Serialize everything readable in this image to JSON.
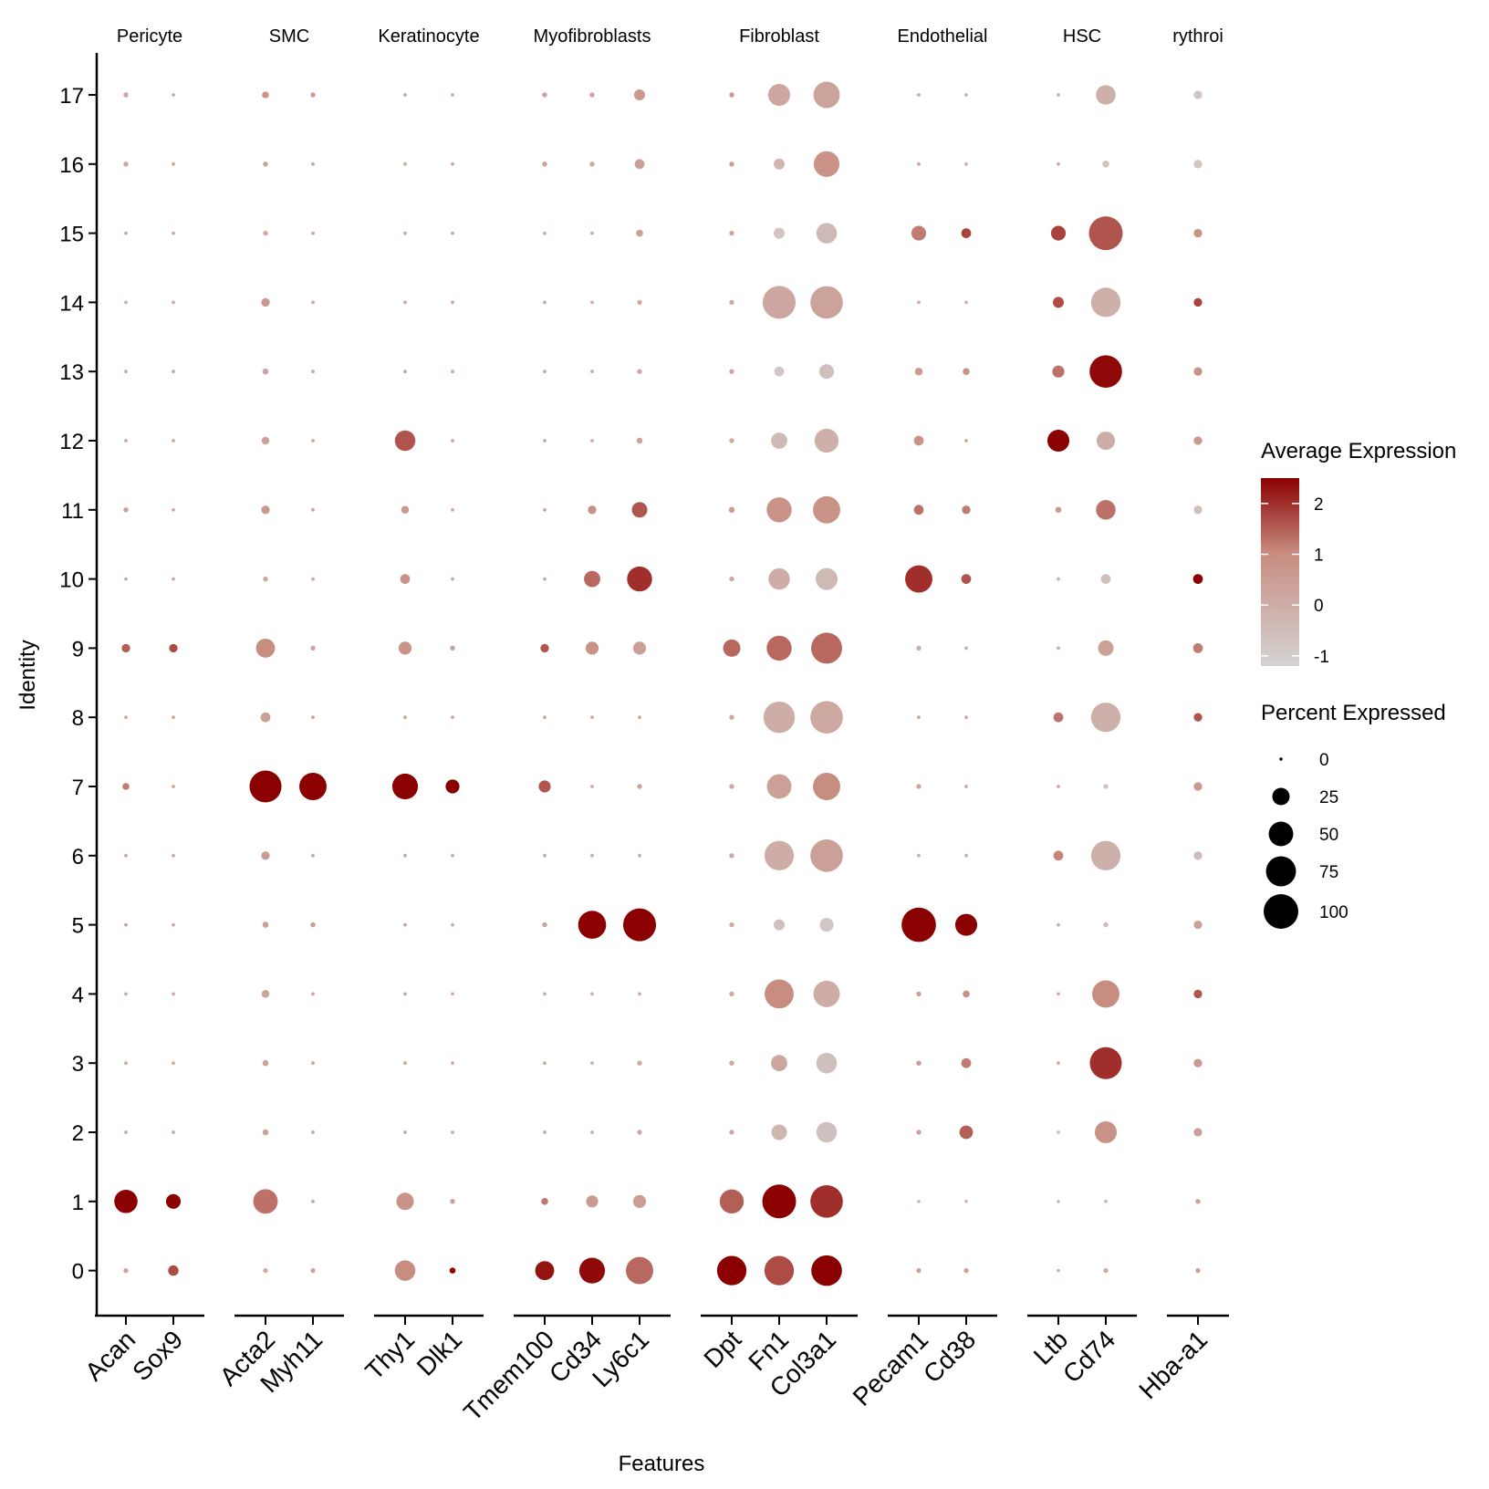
{
  "chart_data": {
    "type": "dotplot",
    "xlabel": "Features",
    "ylabel": "Identity",
    "identities": [
      "0",
      "1",
      "2",
      "3",
      "4",
      "5",
      "6",
      "7",
      "8",
      "9",
      "10",
      "11",
      "12",
      "13",
      "14",
      "15",
      "16",
      "17"
    ],
    "groups": [
      {
        "label": "Pericyte",
        "features": [
          "Acan",
          "Sox9"
        ]
      },
      {
        "label": "SMC",
        "features": [
          "Acta2",
          "Myh11"
        ]
      },
      {
        "label": "Keratinocyte",
        "features": [
          "Thy1",
          "Dlk1"
        ]
      },
      {
        "label": "Myofibroblasts",
        "features": [
          "Tmem100",
          "Cd34",
          "Ly6c1"
        ]
      },
      {
        "label": "Fibroblast",
        "features": [
          "Dpt",
          "Fn1",
          "Col3a1"
        ]
      },
      {
        "label": "Endothelial",
        "features": [
          "Pecam1",
          "Cd38"
        ]
      },
      {
        "label": "HSC",
        "features": [
          "Ltb",
          "Cd74"
        ]
      },
      {
        "label": "Erythroid",
        "features": [
          "Hba-a1"
        ]
      }
    ],
    "group_labels_visible": [
      "Pericyte",
      "SMC",
      "Keratinocyte",
      "Myofibroblasts",
      "Fibroblast",
      "Endothelial",
      "HSC",
      "rythroi"
    ],
    "features": [
      "Acan",
      "Sox9",
      "Acta2",
      "Myh11",
      "Thy1",
      "Dlk1",
      "Tmem100",
      "Cd34",
      "Ly6c1",
      "Dpt",
      "Fn1",
      "Col3a1",
      "Pecam1",
      "Cd38",
      "Ltb",
      "Cd74",
      "Hba-a1"
    ],
    "pct_expressed": [
      [
        2,
        9,
        2,
        2,
        35,
        3,
        30,
        55,
        62,
        72,
        72,
        78,
        2,
        2,
        0,
        2,
        2
      ],
      [
        45,
        18,
        50,
        1,
        25,
        2,
        4,
        12,
        14,
        48,
        95,
        88,
        0,
        0,
        0,
        1,
        2
      ],
      [
        1,
        1,
        3,
        1,
        1,
        1,
        1,
        1,
        2,
        2,
        20,
        35,
        2,
        15,
        0,
        40,
        6
      ],
      [
        1,
        1,
        3,
        1,
        1,
        1,
        1,
        1,
        2,
        2,
        22,
        35,
        2,
        8,
        1,
        85,
        6
      ],
      [
        1,
        1,
        5,
        1,
        1,
        1,
        1,
        1,
        1,
        2,
        70,
        58,
        2,
        4,
        1,
        62,
        6
      ],
      [
        1,
        1,
        3,
        2,
        1,
        1,
        2,
        65,
        90,
        2,
        10,
        16,
        98,
        40,
        1,
        2,
        6
      ],
      [
        1,
        1,
        6,
        1,
        1,
        1,
        1,
        1,
        1,
        2,
        72,
        88,
        1,
        1,
        8,
        72,
        6
      ],
      [
        4,
        1,
        85,
        62,
        55,
        16,
        12,
        1,
        2,
        2,
        50,
        62,
        2,
        1,
        1,
        2,
        6
      ],
      [
        1,
        1,
        8,
        1,
        1,
        1,
        1,
        1,
        1,
        2,
        82,
        88,
        1,
        1,
        8,
        72,
        6
      ],
      [
        6,
        6,
        30,
        2,
        14,
        2,
        6,
        14,
        14,
        25,
        52,
        80,
        2,
        1,
        1,
        20,
        8
      ],
      [
        1,
        1,
        2,
        1,
        8,
        1,
        1,
        22,
        52,
        2,
        38,
        40,
        62,
        8,
        1,
        8,
        8
      ],
      [
        2,
        1,
        6,
        1,
        5,
        1,
        1,
        6,
        20,
        3,
        52,
        62,
        8,
        6,
        3,
        32,
        6
      ],
      [
        1,
        1,
        5,
        1,
        35,
        1,
        1,
        1,
        3,
        2,
        22,
        48,
        8,
        1,
        40,
        28,
        6
      ],
      [
        1,
        1,
        3,
        1,
        1,
        1,
        1,
        1,
        2,
        2,
        8,
        18,
        5,
        4,
        12,
        88,
        6
      ],
      [
        1,
        1,
        6,
        1,
        1,
        1,
        1,
        1,
        2,
        2,
        90,
        88,
        1,
        1,
        10,
        72,
        6
      ],
      [
        1,
        1,
        2,
        1,
        1,
        1,
        1,
        1,
        4,
        2,
        10,
        35,
        18,
        8,
        18,
        95,
        6
      ],
      [
        2,
        1,
        2,
        1,
        1,
        1,
        2,
        2,
        8,
        2,
        10,
        55,
        1,
        1,
        1,
        4,
        6
      ],
      [
        2,
        1,
        4,
        2,
        1,
        1,
        2,
        2,
        10,
        2,
        40,
        58,
        1,
        1,
        1,
        32,
        6
      ]
    ],
    "avg_expression": [
      [
        0.2,
        1.7,
        0.0,
        0.2,
        1.0,
        2.4,
        2.3,
        2.4,
        1.4,
        2.5,
        1.7,
        2.5,
        0.3,
        0.3,
        0.0,
        0.0,
        0.3
      ],
      [
        2.5,
        2.5,
        1.3,
        0.2,
        0.8,
        0.4,
        1.2,
        0.6,
        0.5,
        1.5,
        2.5,
        2.0,
        0.0,
        0.0,
        0.0,
        -0.4,
        0.4
      ],
      [
        0.2,
        0.1,
        0.3,
        0.2,
        0.2,
        0.1,
        0.1,
        0.0,
        0.1,
        0.1,
        -0.3,
        -0.6,
        0.4,
        1.5,
        0.0,
        0.8,
        0.4
      ],
      [
        0.1,
        0.1,
        0.3,
        0.2,
        0.2,
        0.1,
        0.1,
        0.0,
        0.1,
        0.1,
        0.2,
        -0.6,
        0.5,
        1.2,
        0.1,
        2.0,
        0.6
      ],
      [
        0.1,
        0.1,
        0.3,
        0.2,
        0.2,
        0.1,
        0.1,
        0.0,
        0.1,
        0.1,
        1.0,
        0.0,
        0.4,
        0.9,
        0.1,
        1.0,
        1.6
      ],
      [
        0.4,
        0.1,
        0.4,
        0.6,
        0.2,
        0.1,
        0.4,
        2.5,
        2.5,
        0.1,
        -0.6,
        -0.8,
        2.5,
        2.5,
        0.0,
        -0.4,
        0.3
      ],
      [
        0.2,
        0.1,
        0.5,
        0.2,
        0.2,
        0.1,
        0.1,
        0.0,
        0.1,
        0.1,
        0.0,
        0.4,
        0.0,
        0.0,
        1.1,
        -0.1,
        -0.5
      ],
      [
        1.2,
        0.1,
        2.5,
        2.5,
        2.5,
        2.5,
        1.6,
        0.0,
        0.3,
        0.1,
        0.4,
        1.0,
        0.2,
        0.1,
        0.0,
        -0.7,
        0.6
      ],
      [
        0.1,
        0.1,
        0.4,
        0.2,
        0.2,
        0.1,
        0.1,
        0.0,
        0.1,
        0.1,
        0.0,
        0.1,
        0.1,
        0.0,
        1.3,
        -0.1,
        1.6
      ],
      [
        1.5,
        1.7,
        1.0,
        0.2,
        0.8,
        0.4,
        1.6,
        0.8,
        0.4,
        1.4,
        1.4,
        1.4,
        0.0,
        0.0,
        0.0,
        0.4,
        1.2
      ],
      [
        0.1,
        0.1,
        0.1,
        0.2,
        0.8,
        0.1,
        0.1,
        1.4,
        2.0,
        0.1,
        0.0,
        -0.4,
        2.0,
        1.6,
        0.0,
        -0.6,
        2.5
      ],
      [
        0.4,
        0.1,
        0.6,
        0.2,
        0.6,
        0.1,
        0.1,
        0.9,
        1.6,
        0.5,
        0.8,
        0.8,
        1.3,
        1.2,
        0.6,
        1.3,
        -0.6
      ],
      [
        0.1,
        0.1,
        0.4,
        0.2,
        1.6,
        0.1,
        0.1,
        0.0,
        0.3,
        0.1,
        -0.4,
        -0.1,
        0.8,
        0.2,
        2.5,
        0.0,
        0.6
      ],
      [
        0.1,
        0.1,
        0.2,
        0.2,
        0.2,
        0.1,
        0.1,
        0.0,
        0.1,
        0.1,
        -0.8,
        -0.6,
        0.6,
        0.8,
        1.3,
        2.4,
        0.8
      ],
      [
        0.1,
        0.1,
        0.6,
        0.2,
        0.2,
        0.1,
        0.1,
        0.0,
        0.1,
        0.1,
        0.2,
        0.3,
        0.1,
        0.0,
        1.7,
        -0.1,
        1.8
      ],
      [
        0.1,
        0.1,
        0.1,
        0.2,
        0.2,
        0.1,
        0.1,
        0.0,
        0.4,
        0.1,
        -0.8,
        -0.4,
        1.2,
        1.8,
        1.8,
        1.6,
        0.8
      ],
      [
        0.2,
        0.1,
        0.3,
        0.2,
        0.2,
        0.1,
        0.3,
        0.2,
        0.4,
        0.6,
        -0.3,
        0.8,
        0.1,
        0.0,
        0.0,
        -0.7,
        -0.8
      ],
      [
        0.2,
        0.1,
        0.7,
        0.5,
        0.2,
        0.1,
        0.3,
        0.2,
        0.6,
        0.6,
        0.2,
        0.3,
        0.1,
        0.0,
        0.0,
        -0.1,
        -0.8
      ]
    ],
    "color_scale": {
      "low": "#d3d3d3",
      "mid": "#c88c80",
      "high": "#8b0000",
      "domain": [
        -1.2,
        2.5
      ]
    },
    "legend": {
      "color_title": "Average Expression",
      "color_ticks": [
        2,
        1,
        0,
        -1
      ],
      "color_tick_labels": [
        "2",
        "1",
        "0",
        "-1"
      ],
      "size_title": "Percent Expressed",
      "size_values": [
        0,
        25,
        50,
        75,
        100
      ],
      "size_labels": [
        "0",
        "25",
        "50",
        "75",
        "100"
      ],
      "position": "right"
    }
  }
}
